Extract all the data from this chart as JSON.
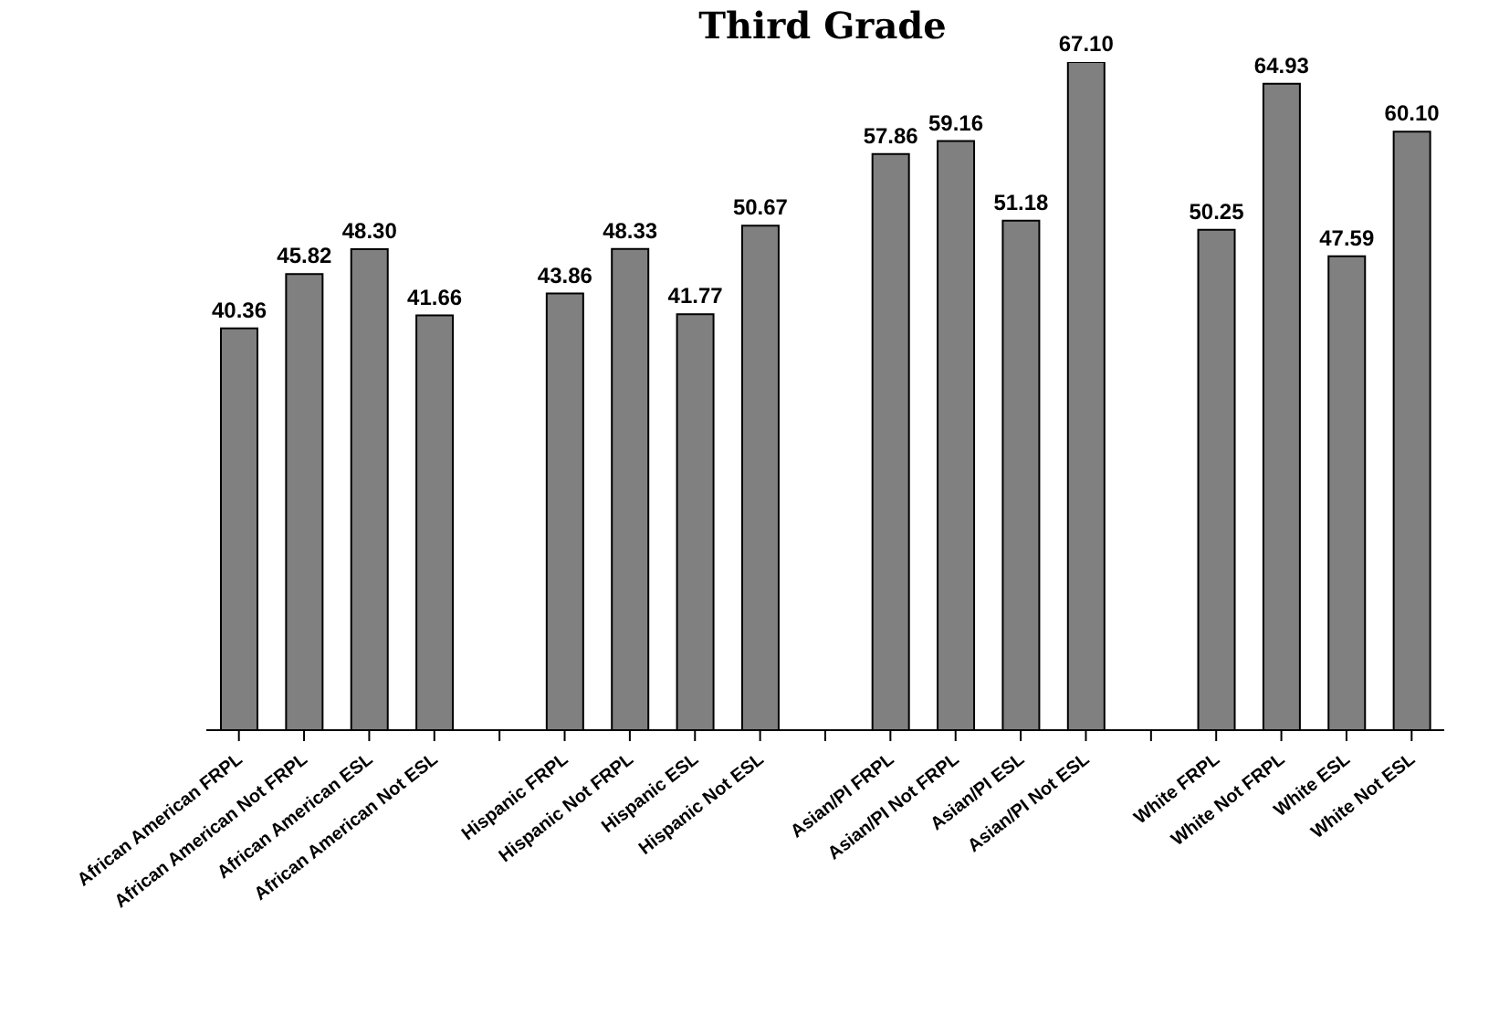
{
  "chart_data": {
    "type": "bar",
    "title": "Third Grade",
    "categories": [
      "African American FRPL",
      "African American Not FRPL",
      "African American ESL",
      "African American Not ESL",
      null,
      "Hispanic FRPL",
      "Hispanic Not FRPL",
      "Hispanic ESL",
      "Hispanic Not ESL",
      null,
      "Asian/PI FRPL",
      "Asian/PI Not FRPL",
      "Asian/PI ESL",
      "Asian/PI Not ESL",
      null,
      "White FRPL",
      "White Not FRPL",
      "White ESL",
      "White Not ESL"
    ],
    "values": [
      40.36,
      45.82,
      48.3,
      41.66,
      null,
      43.86,
      48.33,
      41.77,
      50.67,
      null,
      57.86,
      59.16,
      51.18,
      67.1,
      null,
      50.25,
      64.93,
      47.59,
      60.1
    ],
    "value_labels": [
      "40.36",
      "45.82",
      "48.30",
      "41.66",
      null,
      "43.86",
      "48.33",
      "41.77",
      "50.67",
      null,
      "57.86",
      "59.16",
      "51.18",
      "67.10",
      null,
      "50.25",
      "64.93",
      "47.59",
      "60.10"
    ],
    "color": "#808080",
    "tick_labels": "x",
    "grid": false,
    "legend": false
  }
}
